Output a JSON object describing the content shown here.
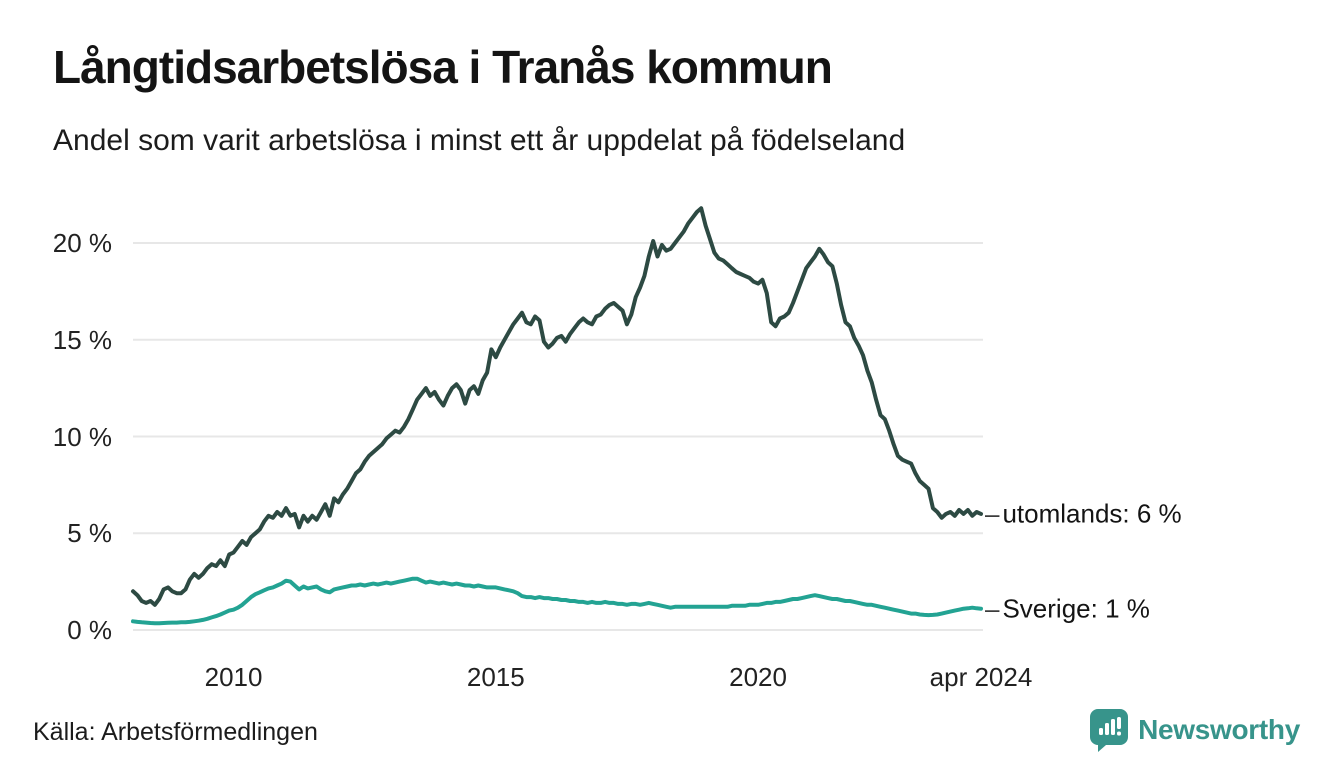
{
  "chart_data": {
    "type": "line",
    "title": "Långtidsarbetslösa i Tranås kommun",
    "subtitle": "Andel som varit arbetslösa i minst ett år uppdelat på födelseland",
    "unit": "%",
    "x_interval": "monthly",
    "x_start": "2008-02",
    "x_end": "2024-04",
    "ylim": [
      0,
      22
    ],
    "grid": true,
    "gridline_color": "#e7e7e7",
    "yticks": [
      0,
      5,
      10,
      15,
      20
    ],
    "ytick_labels": [
      "0 %",
      "5 %",
      "10 %",
      "15 %",
      "20 %"
    ],
    "xticks": [
      {
        "label": "2010",
        "month_index": 23
      },
      {
        "label": "2015",
        "month_index": 83
      },
      {
        "label": "2020",
        "month_index": 143
      },
      {
        "label": "apr 2024",
        "month_index": 194
      }
    ],
    "annotation_dash": "–",
    "series": [
      {
        "name": "utomlands",
        "end_label": "utomlands: 6 %",
        "end_value": 6,
        "color": "#2d4a43",
        "values": [
          2.0,
          1.8,
          1.5,
          1.4,
          1.5,
          1.3,
          1.6,
          2.1,
          2.2,
          2.0,
          1.9,
          1.9,
          2.1,
          2.6,
          2.9,
          2.7,
          2.9,
          3.2,
          3.4,
          3.3,
          3.6,
          3.3,
          3.9,
          4.0,
          4.3,
          4.6,
          4.4,
          4.8,
          5.0,
          5.2,
          5.6,
          5.9,
          5.8,
          6.1,
          5.9,
          6.3,
          5.9,
          6.0,
          5.3,
          5.9,
          5.6,
          5.9,
          5.7,
          6.1,
          6.5,
          5.9,
          6.8,
          6.6,
          7.0,
          7.3,
          7.7,
          8.1,
          8.3,
          8.7,
          9.0,
          9.2,
          9.4,
          9.6,
          9.9,
          10.1,
          10.3,
          10.2,
          10.5,
          10.9,
          11.4,
          11.9,
          12.2,
          12.5,
          12.1,
          12.3,
          11.9,
          11.6,
          12.1,
          12.5,
          12.7,
          12.4,
          11.7,
          12.4,
          12.6,
          12.2,
          12.9,
          13.3,
          14.5,
          14.1,
          14.6,
          15.0,
          15.4,
          15.8,
          16.1,
          16.4,
          15.9,
          15.8,
          16.2,
          16.0,
          14.9,
          14.6,
          14.8,
          15.1,
          15.2,
          14.9,
          15.3,
          15.6,
          15.9,
          16.1,
          15.9,
          15.8,
          16.2,
          16.3,
          16.6,
          16.8,
          16.9,
          16.7,
          16.5,
          15.8,
          16.3,
          17.2,
          17.7,
          18.3,
          19.3,
          20.1,
          19.3,
          19.9,
          19.6,
          19.7,
          20.0,
          20.3,
          20.6,
          21.0,
          21.3,
          21.6,
          21.8,
          20.9,
          20.2,
          19.5,
          19.2,
          19.1,
          18.9,
          18.7,
          18.5,
          18.4,
          18.3,
          18.2,
          18.0,
          17.9,
          18.1,
          17.4,
          15.9,
          15.7,
          16.1,
          16.2,
          16.4,
          16.9,
          17.5,
          18.1,
          18.7,
          19.0,
          19.3,
          19.7,
          19.4,
          19.0,
          18.8,
          17.9,
          16.8,
          15.9,
          15.7,
          15.1,
          14.7,
          14.2,
          13.4,
          12.8,
          11.9,
          11.1,
          10.9,
          10.3,
          9.6,
          9.0,
          8.8,
          8.7,
          8.6,
          8.1,
          7.7,
          7.5,
          7.3,
          6.3,
          6.1,
          5.8,
          6.0,
          6.1,
          5.9,
          6.2,
          6.0,
          6.2,
          5.9,
          6.1,
          6.0
        ]
      },
      {
        "name": "Sverige",
        "end_label": "Sverige: 1 %",
        "end_value": 1,
        "color": "#23a393",
        "values": [
          0.45,
          0.42,
          0.4,
          0.38,
          0.36,
          0.35,
          0.35,
          0.36,
          0.37,
          0.38,
          0.38,
          0.4,
          0.4,
          0.42,
          0.45,
          0.48,
          0.52,
          0.58,
          0.65,
          0.72,
          0.8,
          0.9,
          1.0,
          1.05,
          1.15,
          1.3,
          1.5,
          1.7,
          1.85,
          1.95,
          2.05,
          2.15,
          2.2,
          2.3,
          2.4,
          2.55,
          2.5,
          2.3,
          2.1,
          2.25,
          2.15,
          2.2,
          2.25,
          2.1,
          2.0,
          1.95,
          2.1,
          2.15,
          2.2,
          2.25,
          2.3,
          2.3,
          2.35,
          2.3,
          2.35,
          2.4,
          2.35,
          2.4,
          2.45,
          2.4,
          2.45,
          2.5,
          2.55,
          2.6,
          2.65,
          2.65,
          2.55,
          2.45,
          2.5,
          2.45,
          2.4,
          2.45,
          2.4,
          2.35,
          2.4,
          2.35,
          2.3,
          2.3,
          2.25,
          2.3,
          2.25,
          2.2,
          2.2,
          2.2,
          2.15,
          2.1,
          2.05,
          2.0,
          1.9,
          1.75,
          1.7,
          1.7,
          1.65,
          1.7,
          1.65,
          1.65,
          1.6,
          1.6,
          1.55,
          1.55,
          1.5,
          1.5,
          1.45,
          1.45,
          1.4,
          1.45,
          1.4,
          1.4,
          1.45,
          1.4,
          1.4,
          1.35,
          1.35,
          1.3,
          1.35,
          1.35,
          1.3,
          1.35,
          1.4,
          1.35,
          1.3,
          1.25,
          1.2,
          1.15,
          1.2,
          1.2,
          1.2,
          1.2,
          1.2,
          1.2,
          1.2,
          1.2,
          1.2,
          1.2,
          1.2,
          1.2,
          1.2,
          1.25,
          1.25,
          1.25,
          1.25,
          1.3,
          1.3,
          1.3,
          1.35,
          1.4,
          1.4,
          1.45,
          1.45,
          1.5,
          1.55,
          1.6,
          1.6,
          1.65,
          1.7,
          1.75,
          1.8,
          1.75,
          1.7,
          1.65,
          1.6,
          1.6,
          1.55,
          1.5,
          1.5,
          1.45,
          1.4,
          1.35,
          1.3,
          1.3,
          1.25,
          1.2,
          1.15,
          1.1,
          1.05,
          1.0,
          0.95,
          0.9,
          0.85,
          0.85,
          0.8,
          0.78,
          0.77,
          0.78,
          0.8,
          0.85,
          0.9,
          0.95,
          1.0,
          1.05,
          1.1,
          1.12,
          1.15,
          1.12,
          1.1
        ]
      }
    ]
  },
  "footer": {
    "source": "Källa: Arbetsförmedlingen",
    "logo_text": "Newsworthy",
    "logo_color": "#37948b"
  }
}
